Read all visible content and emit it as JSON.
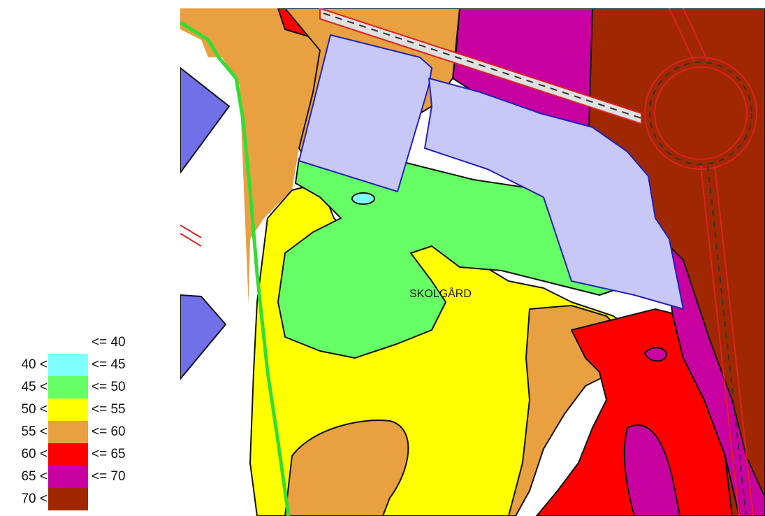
{
  "legend": {
    "rows": [
      {
        "low": "",
        "high": "<= 40",
        "color": ""
      },
      {
        "low": "40 <",
        "high": "<= 45",
        "color": "#80ffff"
      },
      {
        "low": "45 <",
        "high": "<= 50",
        "color": "#66ff66"
      },
      {
        "low": "50 <",
        "high": "<= 55",
        "color": "#ffff00"
      },
      {
        "low": "55 <",
        "high": "<= 60",
        "color": "#e8a040"
      },
      {
        "low": "60 <",
        "high": "<= 65",
        "color": "#ff0000"
      },
      {
        "low": "65 <",
        "high": "<= 70",
        "color": "#c800a0"
      },
      {
        "low": "70 <",
        "high": "",
        "color": "#a02800"
      }
    ]
  },
  "map": {
    "place_label": "SKOLGÅRD",
    "colors": {
      "building": "#c8c8f8",
      "other_building": "#7070e8",
      "boundary": "#33dd33",
      "road": "#e0e0e0",
      "road_edge": "#dd2222"
    }
  }
}
